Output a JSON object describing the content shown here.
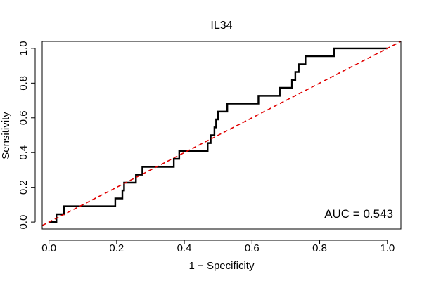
{
  "chart_data": {
    "type": "line",
    "title": "IL34",
    "xlabel": "1 − Specificity",
    "ylabel": "Sensitivity",
    "xlim": [
      -0.02,
      1.04
    ],
    "ylim": [
      -0.04,
      1.04
    ],
    "x_ticks": [
      0.0,
      0.2,
      0.4,
      0.6,
      0.8,
      1.0
    ],
    "x_tick_labels": [
      "0.0",
      "0.2",
      "0.4",
      "0.6",
      "0.8",
      "1.0"
    ],
    "y_ticks": [
      0.0,
      0.2,
      0.4,
      0.6,
      0.8,
      1.0
    ],
    "y_tick_labels": [
      "0.0",
      "0.2",
      "0.4",
      "0.6",
      "0.8",
      "1.0"
    ],
    "annotation": "AUC = 0.543",
    "series": [
      {
        "name": "ROC curve",
        "color": "#000000",
        "style": "solid",
        "x": [
          0.0,
          0.022,
          0.022,
          0.044,
          0.044,
          0.196,
          0.196,
          0.217,
          0.217,
          0.222,
          0.222,
          0.239,
          0.239,
          0.257,
          0.257,
          0.276,
          0.276,
          0.369,
          0.369,
          0.385,
          0.385,
          0.469,
          0.469,
          0.478,
          0.478,
          0.489,
          0.489,
          0.494,
          0.494,
          0.5,
          0.5,
          0.508,
          0.508,
          0.527,
          0.527,
          0.619,
          0.619,
          0.682,
          0.682,
          0.718,
          0.718,
          0.728,
          0.728,
          0.738,
          0.738,
          0.758,
          0.758,
          0.843,
          0.843,
          1.0
        ],
        "y": [
          0.0,
          0.0,
          0.045,
          0.045,
          0.091,
          0.091,
          0.136,
          0.136,
          0.182,
          0.182,
          0.227,
          0.227,
          0.227,
          0.227,
          0.273,
          0.273,
          0.318,
          0.318,
          0.364,
          0.364,
          0.409,
          0.409,
          0.455,
          0.455,
          0.5,
          0.5,
          0.545,
          0.545,
          0.591,
          0.591,
          0.636,
          0.636,
          0.636,
          0.636,
          0.682,
          0.682,
          0.727,
          0.727,
          0.773,
          0.773,
          0.818,
          0.818,
          0.864,
          0.864,
          0.909,
          0.909,
          0.955,
          0.955,
          1.0,
          1.0
        ]
      },
      {
        "name": "Reference diagonal",
        "color": "#e00000",
        "style": "dashed",
        "x": [
          -0.02,
          1.04
        ],
        "y": [
          -0.02,
          1.04
        ]
      }
    ]
  }
}
